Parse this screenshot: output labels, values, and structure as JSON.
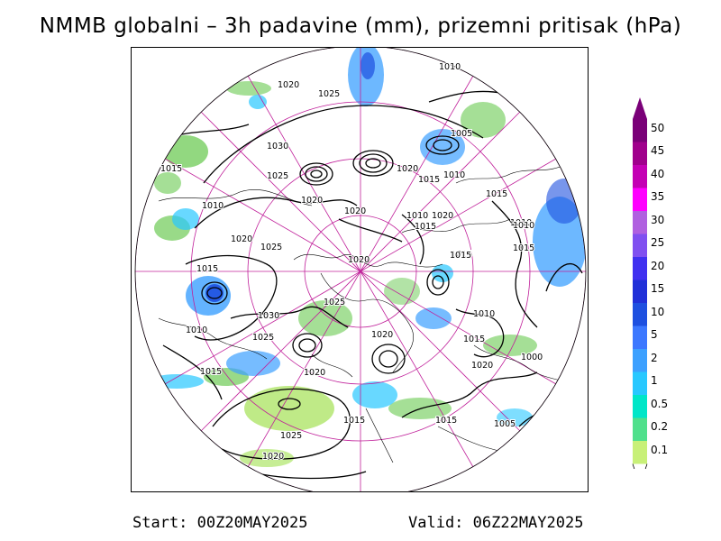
{
  "title": "NMMB globalni – 3h padavine (mm), prizemni pritisak (hPa)",
  "footer": {
    "start": "Start: 00Z20MAY2025",
    "valid": "Valid: 06Z22MAY2025"
  },
  "colorbar": {
    "labels": [
      "50",
      "45",
      "40",
      "35",
      "30",
      "25",
      "20",
      "15",
      "10",
      "5",
      "2",
      "1",
      "0.5",
      "0.2",
      "0.1"
    ],
    "colors": [
      "#7a0078",
      "#a0008c",
      "#c400b4",
      "#ff00ff",
      "#b060e0",
      "#8050f0",
      "#4030f0",
      "#2030d8",
      "#1e50e0",
      "#3c78ff",
      "#3ca0ff",
      "#28c8ff",
      "#00e6c8",
      "#50e08c",
      "#c8f078"
    ]
  },
  "isobars": [
    {
      "label": "1010"
    },
    {
      "label": "1020"
    },
    {
      "label": "1025"
    },
    {
      "label": "1005"
    },
    {
      "label": "1030"
    },
    {
      "label": "1015"
    },
    {
      "label": "1025"
    },
    {
      "label": "1020"
    },
    {
      "label": "1015"
    },
    {
      "label": "1020"
    },
    {
      "label": "1010"
    },
    {
      "label": "1015"
    },
    {
      "label": "1010"
    },
    {
      "label": "1020"
    },
    {
      "label": "1010"
    },
    {
      "label": "1015"
    },
    {
      "label": "1020"
    },
    {
      "label": "1025"
    },
    {
      "label": "1015"
    },
    {
      "label": "1020"
    },
    {
      "label": "1010"
    },
    {
      "label": "1020"
    },
    {
      "label": "1015"
    },
    {
      "label": "1030"
    },
    {
      "label": "1025"
    },
    {
      "label": "1020"
    },
    {
      "label": "1025"
    },
    {
      "label": "1010"
    },
    {
      "label": "1015"
    },
    {
      "label": "1010"
    },
    {
      "label": "1015"
    },
    {
      "label": "1010"
    },
    {
      "label": "1015"
    },
    {
      "label": "1020"
    },
    {
      "label": "1000"
    },
    {
      "label": "1015"
    },
    {
      "label": "1020"
    },
    {
      "label": "1015"
    },
    {
      "label": "1005"
    },
    {
      "label": "1025"
    },
    {
      "label": "1020"
    },
    {
      "label": "1015"
    }
  ]
}
